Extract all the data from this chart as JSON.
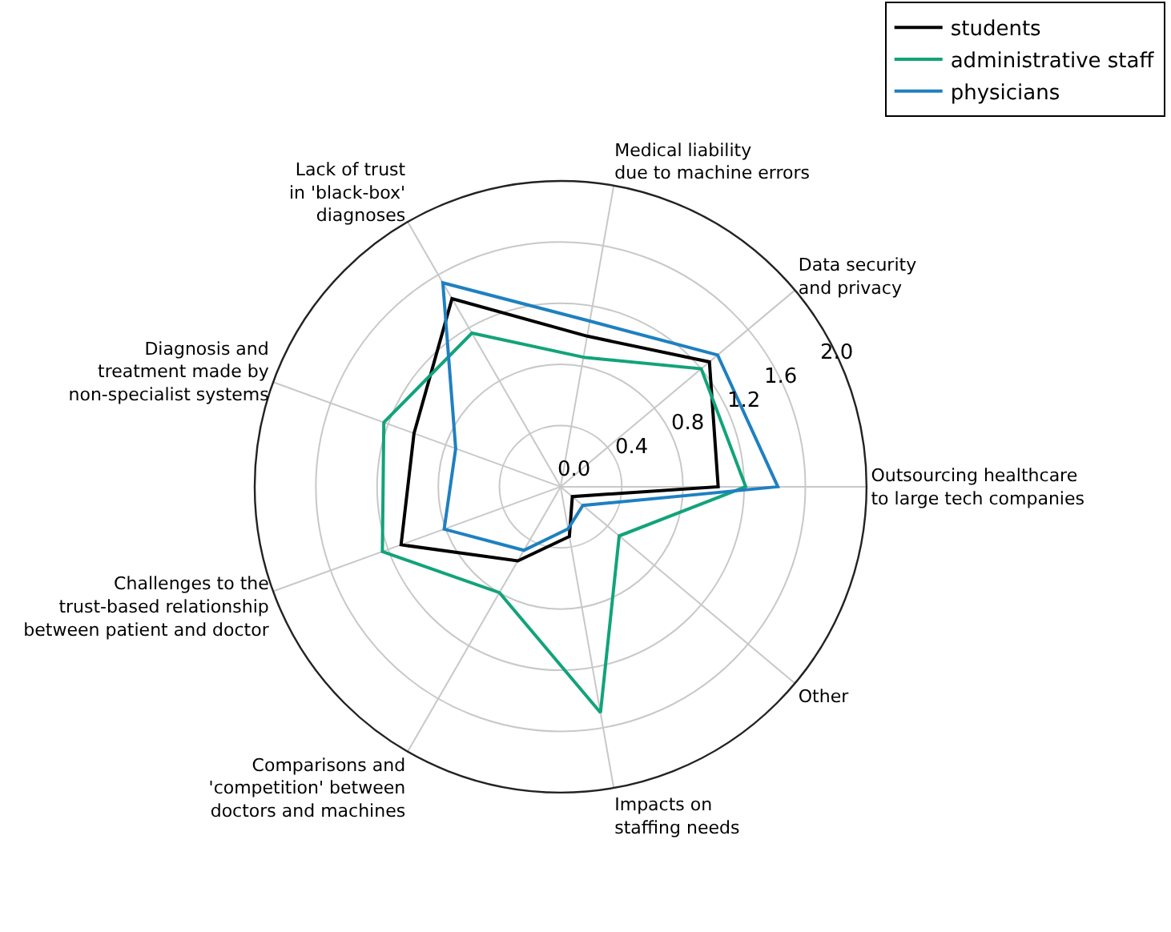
{
  "chart_data": {
    "type": "radar",
    "categories": [
      "Medical liability\ndue to machine errors",
      "Data security\nand privacy",
      "Outsourcing healthcare\nto large tech companies",
      "Other",
      "Impacts on\nstaffing needs",
      "Comparisons and\n'competition' between\ndoctors and machines",
      "Challenges to the\ntrust-based relationship\nbetween patient and doctor",
      "Diagnosis and\ntreatment made by\nnon-specialist systems",
      "Lack of trust\nin 'black-box'\ndiagnoses"
    ],
    "series": [
      {
        "name": "students",
        "color": "#000000",
        "values": [
          1.0,
          1.27,
          1.03,
          0.1,
          0.33,
          0.56,
          1.11,
          1.02,
          1.42
        ]
      },
      {
        "name": "administrative staff",
        "color": "#12a37a",
        "values": [
          0.86,
          1.2,
          1.21,
          0.5,
          1.5,
          0.8,
          1.24,
          1.23,
          1.16
        ]
      },
      {
        "name": "physicians",
        "color": "#1f80c0",
        "values": [
          1.1,
          1.34,
          1.42,
          0.19,
          0.28,
          0.48,
          0.81,
          0.73,
          1.54
        ]
      }
    ],
    "ylim": [
      0,
      2.0
    ],
    "yticks": [
      {
        "value": 0,
        "label": "0.0"
      },
      0.4,
      0.8,
      1.2,
      1.6,
      {
        "value": 2,
        "label": "2.0"
      }
    ],
    "grid": true,
    "legend": "top right",
    "marker": "none",
    "line_style": "solid"
  }
}
